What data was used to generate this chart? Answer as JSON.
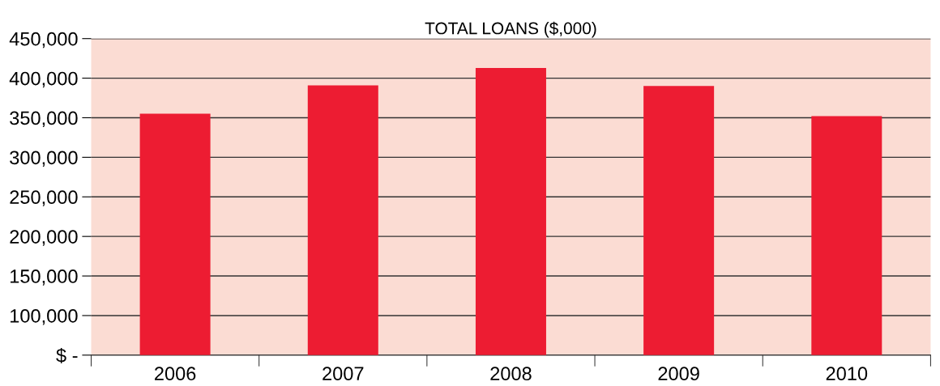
{
  "chart_data": {
    "type": "bar",
    "title": "TOTAL LOANS ($,000)",
    "categories": [
      "2006",
      "2007",
      "2008",
      "2009",
      "2010"
    ],
    "values": [
      355000,
      391000,
      413000,
      390000,
      352000
    ],
    "color": "#ed1c32",
    "ylim": [
      50000,
      450000
    ],
    "yticks": [
      {
        "value": 50000,
        "label": "$ -"
      },
      {
        "value": 100000,
        "label": "100,000"
      },
      {
        "value": 150000,
        "label": "150,000"
      },
      {
        "value": 200000,
        "label": "200,000"
      },
      {
        "value": 250000,
        "label": "250,000"
      },
      {
        "value": 300000,
        "label": "300,000"
      },
      {
        "value": 350000,
        "label": "350,000"
      },
      {
        "value": 400000,
        "label": "400,000"
      },
      {
        "value": 450000,
        "label": "450,000"
      }
    ],
    "grid": "y"
  }
}
